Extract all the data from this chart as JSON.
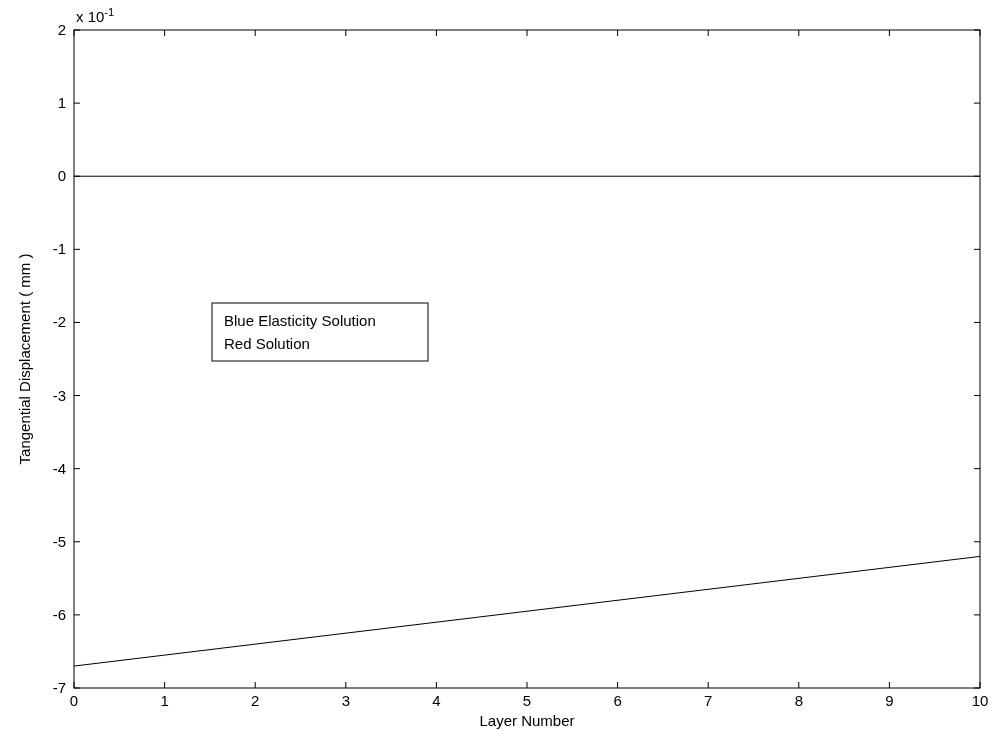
{
  "chart_data": {
    "type": "line",
    "xlabel": "Layer Number",
    "ylabel": "Tangential Displacement ( mm )",
    "x": [
      0,
      10
    ],
    "series": [
      {
        "color": "#000000",
        "values": [
          -6.7,
          -5.2
        ]
      }
    ],
    "xlim": [
      0,
      10
    ],
    "xticks": [
      0,
      1,
      2,
      3,
      4,
      5,
      6,
      7,
      8,
      9,
      10
    ],
    "ylim": [
      -7,
      2
    ],
    "yticks": [
      -7,
      -6,
      -5,
      -4,
      -3,
      -2,
      -1,
      0,
      1,
      2
    ],
    "ref_lines": [
      {
        "axis": "y",
        "value": 0,
        "color": "#000000"
      }
    ],
    "annotations": [
      "x 10$^{-1}$",
      "Blue Elasticity Solution",
      "Red Solution"
    ],
    "grid": false
  }
}
